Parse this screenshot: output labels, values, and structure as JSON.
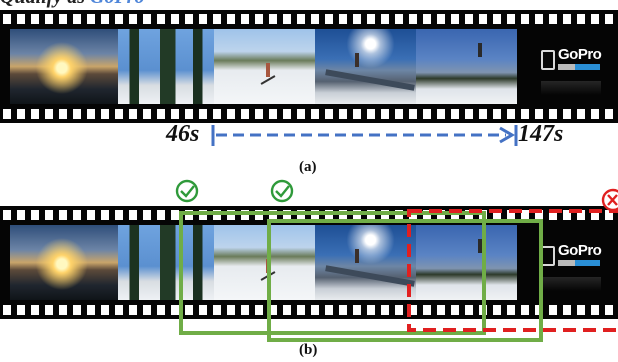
{
  "header": {
    "prefix": "Qualify as ",
    "highlight": "GoPro"
  },
  "logo": {
    "text": "GoPro"
  },
  "panel_a": {
    "start_label": "46s",
    "end_label": "147s",
    "caption": "(a)"
  },
  "panel_b": {
    "caption": "(b)",
    "valid_windows": 2,
    "invalid_windows": 1
  },
  "colors": {
    "arrow": "#4472c4",
    "valid": "#70ad47",
    "invalid": "#e02020",
    "film": "#050505"
  },
  "icons": [
    "check-circle-icon",
    "check-circle-icon",
    "cross-circle-icon"
  ]
}
